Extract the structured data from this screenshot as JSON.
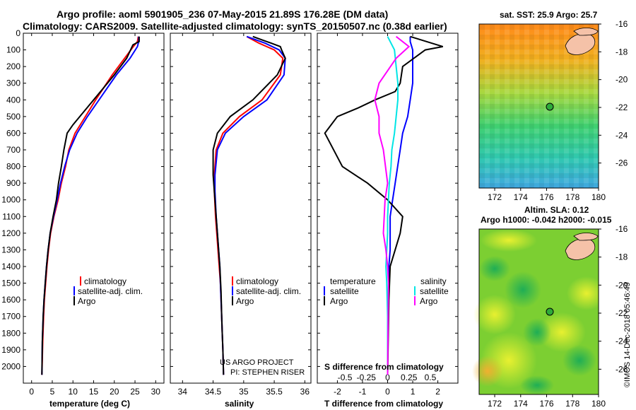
{
  "header": {
    "line1": "Argo profile: aoml 5901905_236 07-May-2015 21.89S 176.28E (DM data)",
    "line2": "Climatology: CARS2009. Satellite-adjusted climatology: synTS_20150507.nc (0.38d earlier)"
  },
  "colors": {
    "climatology": "#ff0000",
    "satellite": "#0000ff",
    "argo": "#000000",
    "salinity": "#00e5e5",
    "argo_salinity": "#ff00ff"
  },
  "credit": {
    "line1": "US ARGO PROJECT",
    "line2": "PI: STEPHEN RISER"
  },
  "right_label": "©IMOS 14-Dec-2018 05:46:49",
  "chart_data": [
    {
      "type": "line",
      "xlabel": "temperature (deg C)",
      "ylabel": "",
      "xlim": [
        -2,
        32
      ],
      "ylim": [
        2100,
        0
      ],
      "xticks": [
        0,
        5,
        10,
        15,
        20,
        25,
        30
      ],
      "yticks": [
        0,
        100,
        200,
        300,
        400,
        500,
        600,
        700,
        800,
        900,
        1000,
        1100,
        1200,
        1300,
        1400,
        1500,
        1600,
        1700,
        1800,
        1900,
        2000
      ],
      "legend": [
        "climatology",
        "satellite-adj. clim.",
        "Argo"
      ],
      "series": [
        {
          "name": "climatology",
          "color": "#ff0000",
          "x": [
            25.8,
            25.6,
            24.6,
            22.5,
            19.5,
            15.5,
            13.0,
            10.5,
            9.0,
            8.2,
            7.2,
            6.4,
            5.4,
            4.6,
            4.1,
            3.7,
            3.4,
            3.1,
            2.9,
            2.7,
            2.5
          ],
          "y": [
            20,
            50,
            80,
            150,
            250,
            400,
            500,
            600,
            700,
            800,
            900,
            1000,
            1100,
            1200,
            1300,
            1400,
            1500,
            1600,
            1700,
            1850,
            2050
          ]
        },
        {
          "name": "satellite-adj. clim.",
          "color": "#0000ff",
          "x": [
            25.9,
            25.9,
            25.6,
            23.8,
            20.5,
            16.3,
            13.5,
            11.0,
            9.2,
            8.0,
            7.0,
            6.2,
            5.3,
            4.5,
            4.0,
            3.6,
            3.3,
            3.0,
            2.8,
            2.6,
            2.5
          ],
          "y": [
            20,
            50,
            80,
            150,
            250,
            400,
            500,
            600,
            700,
            800,
            900,
            1000,
            1100,
            1200,
            1300,
            1400,
            1500,
            1600,
            1700,
            1850,
            2050
          ]
        },
        {
          "name": "Argo",
          "color": "#000000",
          "x": [
            26.0,
            26.0,
            24.5,
            23.0,
            20.0,
            15.0,
            10.0,
            8.6,
            7.8,
            7.2,
            6.5,
            6.0,
            5.2,
            4.5,
            4.0,
            3.6,
            3.3,
            3.0,
            2.8,
            2.6,
            2.5
          ],
          "y": [
            20,
            50,
            70,
            150,
            250,
            400,
            550,
            600,
            700,
            800,
            900,
            1000,
            1100,
            1200,
            1300,
            1400,
            1500,
            1600,
            1700,
            1850,
            2050
          ]
        }
      ]
    },
    {
      "type": "line",
      "xlabel": "salinity",
      "ylabel": "",
      "xlim": [
        33.8,
        36.1
      ],
      "ylim": [
        2100,
        0
      ],
      "xticks": [
        34,
        34.5,
        35,
        35.5,
        36
      ],
      "xticklabels": [
        "34",
        "34.5",
        "35",
        "35.5",
        "36"
      ],
      "legend": [
        "climatology",
        "satellite-adj. clim.",
        "Argo"
      ],
      "series": [
        {
          "name": "climatology",
          "color": "#ff0000",
          "x": [
            35.05,
            35.25,
            35.5,
            35.64,
            35.6,
            35.3,
            34.93,
            34.66,
            34.55,
            34.52,
            34.52,
            34.54,
            34.57,
            34.6,
            34.62,
            34.63,
            34.64,
            34.65,
            34.66,
            34.67
          ],
          "y": [
            20,
            60,
            100,
            150,
            250,
            400,
            500,
            600,
            700,
            850,
            950,
            1100,
            1250,
            1400,
            1500,
            1600,
            1700,
            1800,
            1900,
            2050
          ]
        },
        {
          "name": "satellite-adj. clim.",
          "color": "#0000ff",
          "x": [
            35.05,
            35.35,
            35.58,
            35.68,
            35.66,
            35.38,
            35.0,
            34.7,
            34.57,
            34.53,
            34.53,
            34.55,
            34.58,
            34.61,
            34.62,
            34.63,
            34.64,
            34.65,
            34.66,
            34.67
          ],
          "y": [
            20,
            60,
            100,
            150,
            250,
            400,
            500,
            600,
            700,
            850,
            950,
            1100,
            1250,
            1400,
            1500,
            1600,
            1700,
            1800,
            1900,
            2050
          ]
        },
        {
          "name": "Argo",
          "color": "#000000",
          "x": [
            35.15,
            35.3,
            35.45,
            35.6,
            35.62,
            35.68,
            35.55,
            35.15,
            34.78,
            34.57,
            34.5,
            34.5,
            34.52,
            34.55,
            34.58,
            34.61,
            34.63,
            34.64,
            34.65,
            34.66,
            34.67
          ],
          "y": [
            20,
            40,
            60,
            80,
            100,
            150,
            250,
            400,
            500,
            600,
            700,
            850,
            950,
            1100,
            1250,
            1400,
            1550,
            1700,
            1800,
            1900,
            2050
          ]
        }
      ]
    },
    {
      "type": "line",
      "xlabel": "T difference from climatology",
      "ylabel": "",
      "title_bottom": "S difference from climatology",
      "xlim": [
        -2.8,
        2.8
      ],
      "ylim": [
        2100,
        0
      ],
      "xticks": [
        -2,
        -1,
        0,
        1,
        2
      ],
      "xticklabels": [
        "-2",
        "-1",
        "0",
        "1",
        "2"
      ],
      "sticks": [
        -0.5,
        -0.25,
        0,
        0.25,
        0.5
      ],
      "sticklabels": [
        "-0.5",
        "-0.25",
        "0",
        "0.25",
        "0.5"
      ],
      "legend_temperature": {
        "title": "temperature",
        "items": [
          "satellite",
          "Argo"
        ]
      },
      "legend_salinity": {
        "title": "salinity",
        "items": [
          "satellite",
          "Argo"
        ]
      },
      "series": [
        {
          "name": "T satellite",
          "color": "#0000ff",
          "x": [
            0.9,
            0.9,
            1.0,
            1.0,
            1.0,
            0.9,
            0.8,
            0.6,
            0.5,
            0.4,
            0.3,
            0.2,
            0.1,
            0.1,
            0.1,
            0.05,
            0.05,
            0.0,
            0.0
          ],
          "y": [
            20,
            50,
            100,
            200,
            300,
            400,
            500,
            600,
            700,
            800,
            900,
            1000,
            1100,
            1200,
            1300,
            1400,
            1500,
            1700,
            2050
          ]
        },
        {
          "name": "T Argo",
          "color": "#000000",
          "x": [
            0.9,
            2.2,
            1.5,
            0.6,
            0.5,
            0.3,
            -0.5,
            -1.2,
            -2.0,
            -2.5,
            -1.8,
            -0.8,
            0.0,
            0.6,
            0.5,
            0.3,
            0.1,
            0.05,
            0.0
          ],
          "y": [
            20,
            80,
            100,
            200,
            300,
            350,
            400,
            450,
            500,
            600,
            800,
            900,
            1000,
            1100,
            1200,
            1300,
            1400,
            1600,
            2050
          ]
        },
        {
          "name": "S satellite",
          "color": "#00e5e5",
          "x": [
            0.0,
            0.08,
            0.1,
            0.12,
            0.12,
            0.1,
            0.08,
            0.05,
            0.04,
            0.02,
            0.01,
            0.0,
            0.0,
            -0.01,
            -0.02,
            -0.01,
            0.0,
            0.0
          ],
          "y": [
            20,
            100,
            200,
            300,
            400,
            500,
            600,
            700,
            800,
            900,
            1000,
            1100,
            1200,
            1300,
            1400,
            1500,
            1700,
            2050
          ]
        },
        {
          "name": "S Argo",
          "color": "#ff00ff",
          "x": [
            0.1,
            0.25,
            0.1,
            -0.1,
            -0.15,
            -0.1,
            -0.1,
            -0.05,
            0.0,
            -0.03,
            -0.05,
            -0.02,
            0.0,
            0.01,
            0.0
          ],
          "y": [
            20,
            80,
            150,
            300,
            400,
            500,
            600,
            700,
            900,
            1000,
            1200,
            1300,
            1400,
            1500,
            2050
          ]
        }
      ]
    },
    {
      "type": "heatmap",
      "title": "sat. SST: 25.9 Argo: 25.7",
      "xticks": [
        172,
        174,
        176,
        178,
        180
      ],
      "yticks": [
        -16,
        -18,
        -20,
        -22,
        -24,
        -26
      ],
      "xlim": [
        170.8,
        180.0
      ],
      "ylim": [
        -27.8,
        -16.0
      ],
      "marker": {
        "lon": 176.28,
        "lat": -21.89
      }
    },
    {
      "type": "heatmap",
      "title": "Altim. SLA: 0.12",
      "subtitle": "Argo h1000: -0.042 h2000: -0.015",
      "xticks": [
        172,
        174,
        176,
        178,
        180
      ],
      "yticks": [
        -16,
        -18,
        -20,
        -22,
        -24,
        -26
      ],
      "xlim": [
        170.8,
        180.0
      ],
      "ylim": [
        -27.8,
        -16.0
      ],
      "marker": {
        "lon": 176.28,
        "lat": -21.89
      }
    }
  ]
}
